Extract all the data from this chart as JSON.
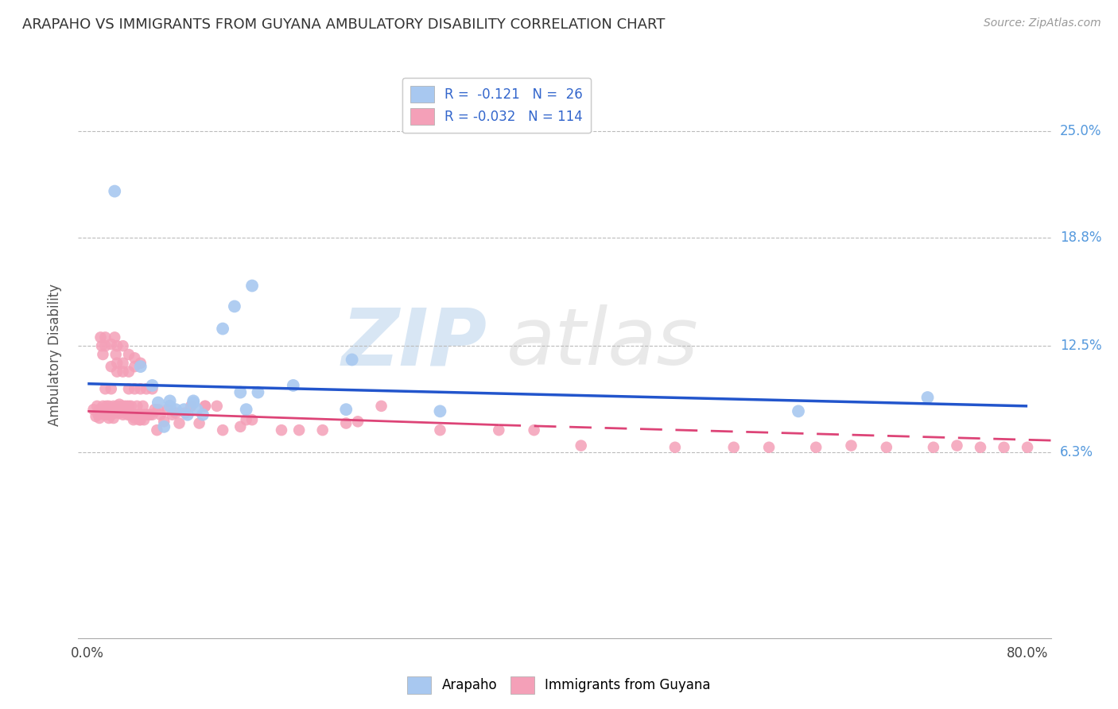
{
  "title": "ARAPAHO VS IMMIGRANTS FROM GUYANA AMBULATORY DISABILITY CORRELATION CHART",
  "source": "Source: ZipAtlas.com",
  "ylabel": "Ambulatory Disability",
  "bg_color": "#ffffff",
  "watermark_text": "ZIPatlas",
  "legend_blue_label": "R =  -0.121   N =  26",
  "legend_pink_label": "R = -0.032   N = 114",
  "legend_bottom_blue": "Arapaho",
  "legend_bottom_pink": "Immigrants from Guyana",
  "blue_dot_color": "#A8C8F0",
  "pink_dot_color": "#F4A0B8",
  "blue_line_color": "#2255CC",
  "pink_line_color": "#DD4477",
  "grid_color": "#BBBBBB",
  "ytick_color": "#5599DD",
  "ytick_vals": [
    0.063,
    0.125,
    0.188,
    0.25
  ],
  "ytick_labels": [
    "6.3%",
    "12.5%",
    "18.8%",
    "25.0%"
  ],
  "xtick_vals": [
    0.0,
    0.2,
    0.4,
    0.6,
    0.8
  ],
  "xtick_labels": [
    "0.0%",
    "",
    "",
    "",
    "80.0%"
  ],
  "xlim": [
    -0.008,
    0.82
  ],
  "ylim": [
    -0.045,
    0.285
  ],
  "blue_line_x0": 0.0,
  "blue_line_y0": 0.103,
  "blue_line_x1": 0.8,
  "blue_line_y1": 0.09,
  "pink_line_solid_x0": 0.0,
  "pink_line_solid_y0": 0.087,
  "pink_line_solid_x1": 0.35,
  "pink_line_solid_y1": 0.079,
  "pink_line_dash_x0": 0.35,
  "pink_line_dash_y0": 0.079,
  "pink_line_dash_x1": 0.82,
  "pink_line_dash_y1": 0.07,
  "arapaho_x": [
    0.023,
    0.045,
    0.06,
    0.065,
    0.07,
    0.075,
    0.082,
    0.085,
    0.09,
    0.093,
    0.098,
    0.115,
    0.125,
    0.13,
    0.135,
    0.145,
    0.175,
    0.22,
    0.225,
    0.3,
    0.605,
    0.715,
    0.055,
    0.07,
    0.09,
    0.14
  ],
  "arapaho_y": [
    0.215,
    0.113,
    0.092,
    0.078,
    0.093,
    0.088,
    0.088,
    0.085,
    0.093,
    0.088,
    0.085,
    0.135,
    0.148,
    0.098,
    0.088,
    0.098,
    0.102,
    0.088,
    0.117,
    0.087,
    0.087,
    0.095,
    0.102,
    0.09,
    0.092,
    0.16
  ],
  "guyana_x": [
    0.005,
    0.007,
    0.008,
    0.009,
    0.01,
    0.01,
    0.011,
    0.012,
    0.013,
    0.013,
    0.014,
    0.015,
    0.015,
    0.015,
    0.016,
    0.016,
    0.017,
    0.018,
    0.018,
    0.019,
    0.02,
    0.02,
    0.02,
    0.02,
    0.021,
    0.022,
    0.022,
    0.023,
    0.023,
    0.024,
    0.025,
    0.025,
    0.025,
    0.025,
    0.026,
    0.027,
    0.028,
    0.029,
    0.03,
    0.03,
    0.03,
    0.03,
    0.031,
    0.032,
    0.033,
    0.034,
    0.035,
    0.035,
    0.035,
    0.035,
    0.036,
    0.037,
    0.038,
    0.039,
    0.04,
    0.04,
    0.04,
    0.04,
    0.041,
    0.042,
    0.043,
    0.044,
    0.045,
    0.045,
    0.045,
    0.046,
    0.047,
    0.048,
    0.049,
    0.05,
    0.051,
    0.053,
    0.055,
    0.055,
    0.057,
    0.059,
    0.06,
    0.062,
    0.065,
    0.068,
    0.072,
    0.075,
    0.078,
    0.083,
    0.088,
    0.095,
    0.1,
    0.1,
    0.11,
    0.115,
    0.13,
    0.135,
    0.14,
    0.165,
    0.18,
    0.2,
    0.22,
    0.23,
    0.25,
    0.3,
    0.35,
    0.38,
    0.42,
    0.5,
    0.55,
    0.58,
    0.62,
    0.65,
    0.68,
    0.72,
    0.74,
    0.76,
    0.78,
    0.8
  ],
  "guyana_y": [
    0.088,
    0.084,
    0.09,
    0.085,
    0.088,
    0.083,
    0.13,
    0.125,
    0.12,
    0.09,
    0.085,
    0.13,
    0.125,
    0.1,
    0.09,
    0.085,
    0.088,
    0.083,
    0.09,
    0.086,
    0.126,
    0.113,
    0.1,
    0.085,
    0.088,
    0.083,
    0.09,
    0.086,
    0.13,
    0.12,
    0.125,
    0.115,
    0.11,
    0.09,
    0.086,
    0.091,
    0.086,
    0.09,
    0.125,
    0.115,
    0.11,
    0.085,
    0.09,
    0.086,
    0.09,
    0.085,
    0.12,
    0.11,
    0.1,
    0.09,
    0.085,
    0.09,
    0.085,
    0.082,
    0.118,
    0.113,
    0.1,
    0.083,
    0.085,
    0.09,
    0.085,
    0.082,
    0.115,
    0.1,
    0.082,
    0.085,
    0.09,
    0.082,
    0.085,
    0.1,
    0.085,
    0.085,
    0.1,
    0.085,
    0.088,
    0.076,
    0.088,
    0.085,
    0.081,
    0.088,
    0.085,
    0.086,
    0.08,
    0.086,
    0.09,
    0.08,
    0.09,
    0.09,
    0.09,
    0.076,
    0.078,
    0.082,
    0.082,
    0.076,
    0.076,
    0.076,
    0.08,
    0.081,
    0.09,
    0.076,
    0.076,
    0.076,
    0.067,
    0.066,
    0.066,
    0.066,
    0.066,
    0.067,
    0.066,
    0.066,
    0.067,
    0.066,
    0.066,
    0.066
  ]
}
